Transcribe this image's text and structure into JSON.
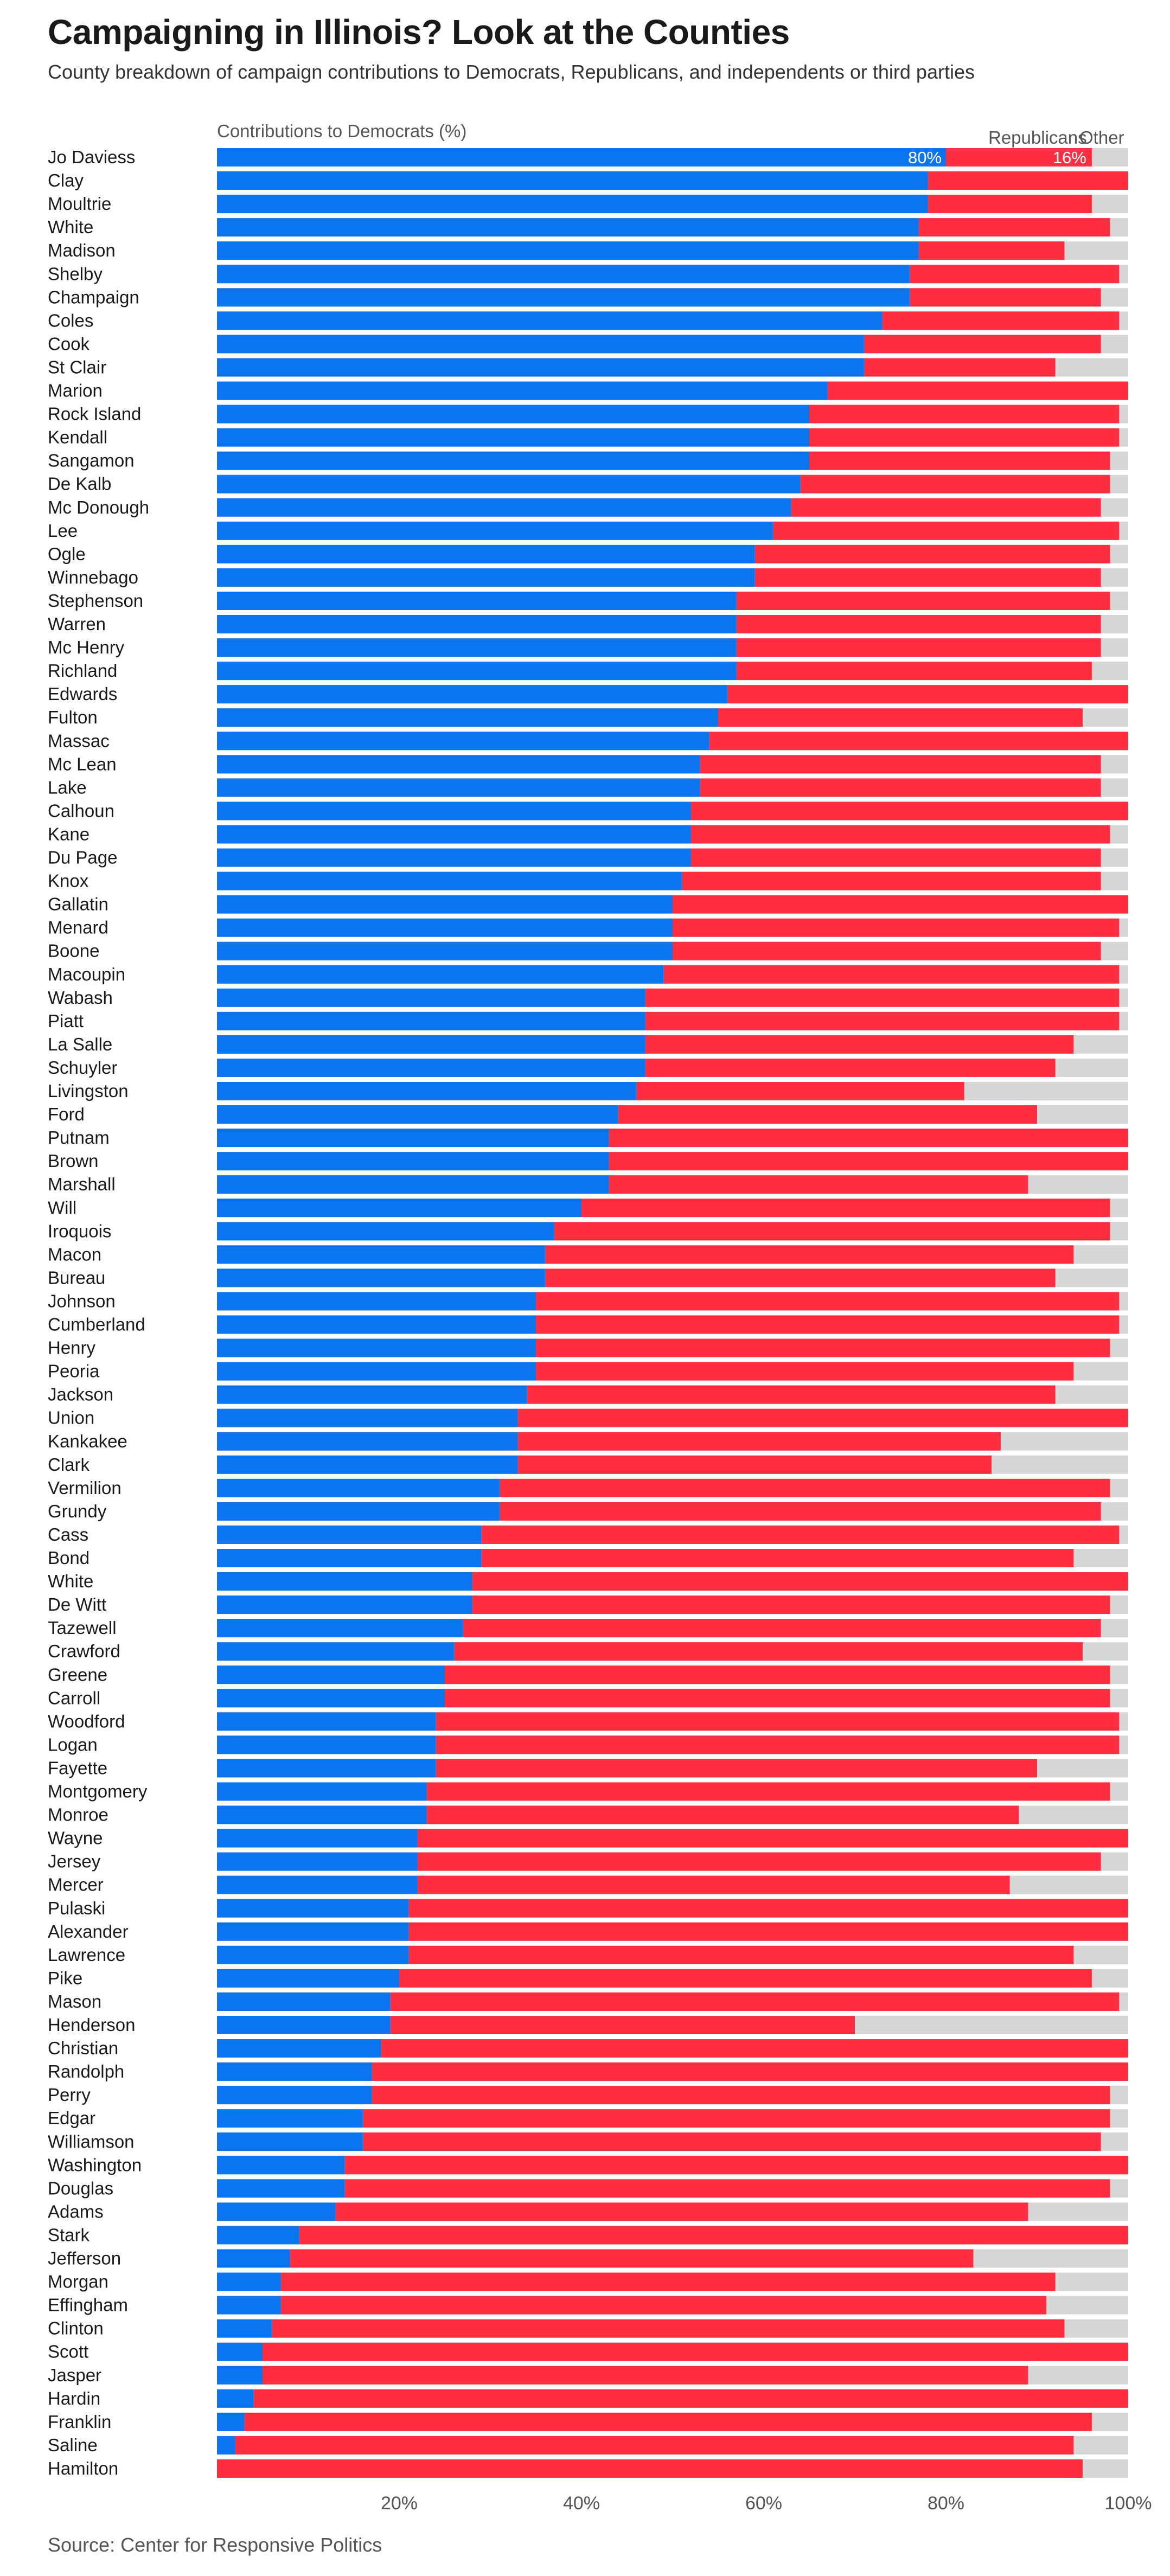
{
  "title": "Campaigning in Illinois? Look at the Counties",
  "subtitle": "County breakdown of campaign contributions to Democrats, Republicans, and independents or third parties",
  "source": "Source: Center for Responsive Politics",
  "colors": {
    "democrats": "#0b74ef",
    "republicans": "#ff2d40",
    "other": "#d6d6d6"
  },
  "chart_data": {
    "type": "bar",
    "orientation": "horizontal",
    "stacked": true,
    "header_label": "Contributions to Democrats (%)",
    "series_headers": [
      "Republicans",
      "Other"
    ],
    "first_row_labels": [
      "80%",
      "16%"
    ],
    "x_ticks": [
      "20%",
      "40%",
      "60%",
      "80%",
      "100%"
    ],
    "x_tick_values": [
      20,
      40,
      60,
      80,
      100
    ],
    "xlim": [
      0,
      100
    ],
    "grid": false,
    "categories": [
      "Jo Daviess",
      "Clay",
      "Moultrie",
      "White",
      "Madison",
      "Shelby",
      "Champaign",
      "Coles",
      "Cook",
      "St Clair",
      "Marion",
      "Rock Island",
      "Kendall",
      "Sangamon",
      "De Kalb",
      "Mc Donough",
      "Lee",
      "Ogle",
      "Winnebago",
      "Stephenson",
      "Warren",
      "Mc Henry",
      "Richland",
      "Edwards",
      "Fulton",
      "Massac",
      "Mc Lean",
      "Lake",
      "Calhoun",
      "Kane",
      "Du Page",
      "Knox",
      "Gallatin",
      "Menard",
      "Boone",
      "Macoupin",
      "Wabash",
      "Piatt",
      "La Salle",
      "Schuyler",
      "Livingston",
      "Ford",
      "Putnam",
      "Brown",
      "Marshall",
      "Will",
      "Iroquois",
      "Macon",
      "Bureau",
      "Johnson",
      "Cumberland",
      "Henry",
      "Peoria",
      "Jackson",
      "Union",
      "Kankakee",
      "Clark",
      "Vermilion",
      "Grundy",
      "Cass",
      "Bond",
      "White",
      "De Witt",
      "Tazewell",
      "Crawford",
      "Greene",
      "Carroll",
      "Woodford",
      "Logan",
      "Fayette",
      "Montgomery",
      "Monroe",
      "Wayne",
      "Jersey",
      "Mercer",
      "Pulaski",
      "Alexander",
      "Lawrence",
      "Pike",
      "Mason",
      "Henderson",
      "Christian",
      "Randolph",
      "Perry",
      "Edgar",
      "Williamson",
      "Washington",
      "Douglas",
      "Adams",
      "Stark",
      "Jefferson",
      "Morgan",
      "Effingham",
      "Clinton",
      "Scott",
      "Jasper",
      "Hardin",
      "Franklin",
      "Saline",
      "Hamilton"
    ],
    "series": [
      {
        "name": "Contributions to Democrats (%)",
        "values": [
          80,
          78,
          78,
          77,
          77,
          76,
          76,
          73,
          71,
          71,
          67,
          65,
          65,
          65,
          64,
          63,
          61,
          59,
          59,
          57,
          57,
          57,
          57,
          56,
          55,
          54,
          53,
          53,
          52,
          52,
          52,
          51,
          50,
          50,
          50,
          49,
          47,
          47,
          47,
          47,
          46,
          44,
          43,
          43,
          43,
          40,
          37,
          36,
          36,
          35,
          35,
          35,
          35,
          34,
          33,
          33,
          33,
          31,
          31,
          29,
          29,
          28,
          28,
          27,
          26,
          25,
          25,
          24,
          24,
          24,
          23,
          23,
          22,
          22,
          22,
          21,
          21,
          21,
          20,
          19,
          19,
          18,
          17,
          17,
          16,
          16,
          14,
          14,
          13,
          9,
          8,
          7,
          7,
          6,
          5,
          5,
          4,
          3,
          2,
          0
        ]
      },
      {
        "name": "Republicans",
        "values": [
          16,
          22,
          18,
          21,
          16,
          23,
          21,
          26,
          26,
          21,
          33,
          34,
          34,
          33,
          34,
          34,
          38,
          39,
          38,
          41,
          40,
          40,
          39,
          44,
          40,
          46,
          44,
          44,
          48,
          46,
          45,
          46,
          50,
          49,
          47,
          50,
          52,
          52,
          47,
          45,
          36,
          46,
          57,
          57,
          46,
          58,
          61,
          58,
          56,
          64,
          64,
          63,
          59,
          58,
          67,
          53,
          52,
          67,
          66,
          70,
          65,
          72,
          70,
          70,
          69,
          73,
          73,
          75,
          75,
          66,
          75,
          65,
          78,
          75,
          65,
          79,
          79,
          73,
          76,
          80,
          51,
          82,
          83,
          81,
          82,
          81,
          86,
          84,
          76,
          91,
          75,
          85,
          84,
          87,
          95,
          84,
          96,
          93,
          92,
          95
        ]
      }
    ]
  }
}
